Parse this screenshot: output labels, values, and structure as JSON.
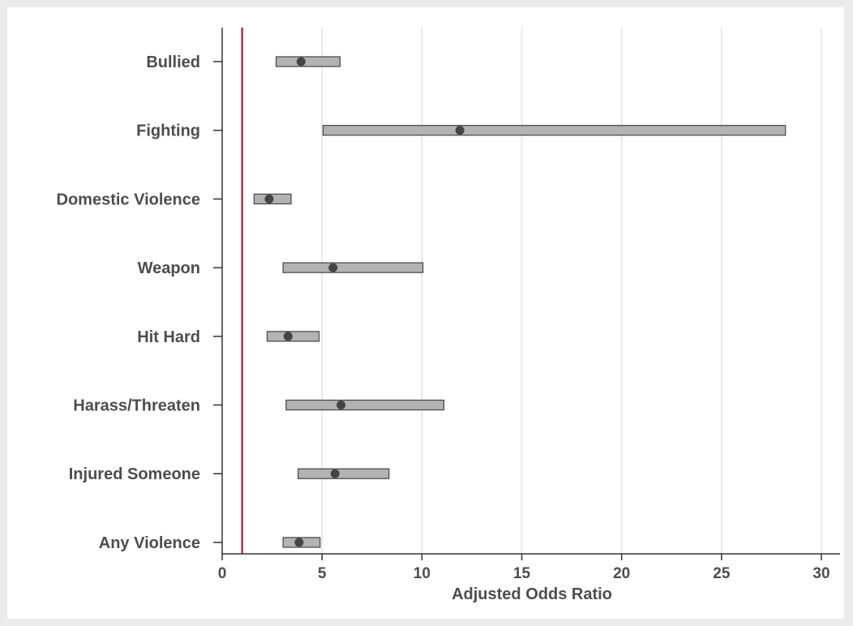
{
  "chart_data": {
    "type": "forest",
    "xlabel": "Adjusted Odds Ratio",
    "ylabel": "",
    "xlim": [
      0,
      31
    ],
    "xticks": [
      0,
      5,
      10,
      15,
      20,
      25,
      30
    ],
    "grid": true,
    "reference_line": {
      "x": 1,
      "color": "#a3193a"
    },
    "colors": {
      "bar_fill": "#b3b3b3",
      "bar_stroke": "#4d4d4d",
      "point": "#444444",
      "grid": "#e4e9ed",
      "axis": "#333333"
    },
    "categories": [
      "Bullied",
      "Fighting",
      "Domestic Violence",
      "Weapon",
      "Hit Hard",
      "Harass/Threaten",
      "Injured Someone",
      "Any Violence"
    ],
    "estimate": [
      3.95,
      11.9,
      2.35,
      5.55,
      3.3,
      5.95,
      5.65,
      3.85
    ],
    "lower": [
      2.7,
      5.05,
      1.6,
      3.05,
      2.25,
      3.2,
      3.8,
      3.05
    ],
    "upper": [
      5.9,
      28.2,
      3.45,
      10.05,
      4.85,
      11.1,
      8.35,
      4.9
    ]
  }
}
